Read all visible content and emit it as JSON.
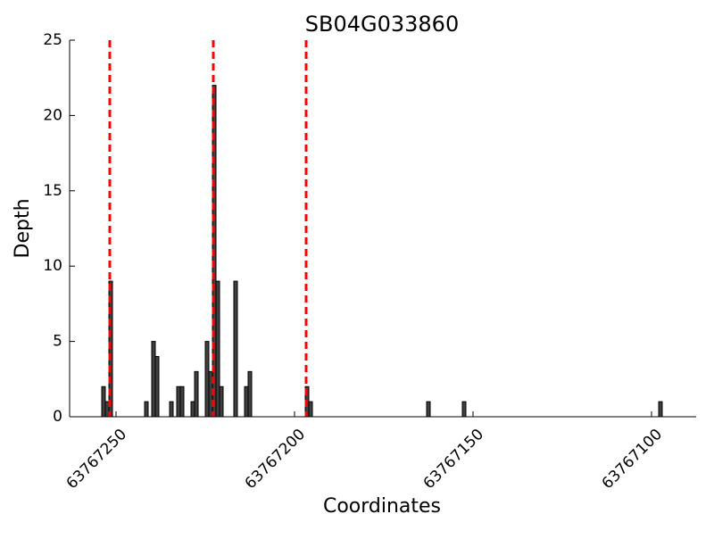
{
  "chart_data": {
    "type": "bar",
    "title": "SB04G033860",
    "x_label": "Coordinates",
    "y_label": "Depth",
    "x": [
      63767254,
      63767253,
      63767252,
      63767242,
      63767240,
      63767239,
      63767235,
      63767233,
      63767232,
      63767229,
      63767228,
      63767225,
      63767224,
      63767223,
      63767222,
      63767221,
      63767217,
      63767214,
      63767213,
      63767197,
      63767196,
      63767163,
      63767153,
      63767098
    ],
    "values": [
      2,
      1,
      9,
      1,
      5,
      4,
      1,
      2,
      2,
      1,
      3,
      5,
      3,
      22,
      9,
      2,
      9,
      2,
      3,
      2,
      1,
      1,
      1,
      1
    ],
    "color": "#404040",
    "vlines": [
      63767251.75,
      63767222.75,
      63767196.75
    ],
    "vline_color": "#ff0000",
    "xlim": [
      63767263,
      63767087.5
    ],
    "xticks": [
      63767250,
      63767200,
      63767150,
      63767100
    ],
    "ylim": [
      0,
      25
    ],
    "yticks": [
      0,
      5,
      10,
      15,
      20,
      25
    ]
  }
}
